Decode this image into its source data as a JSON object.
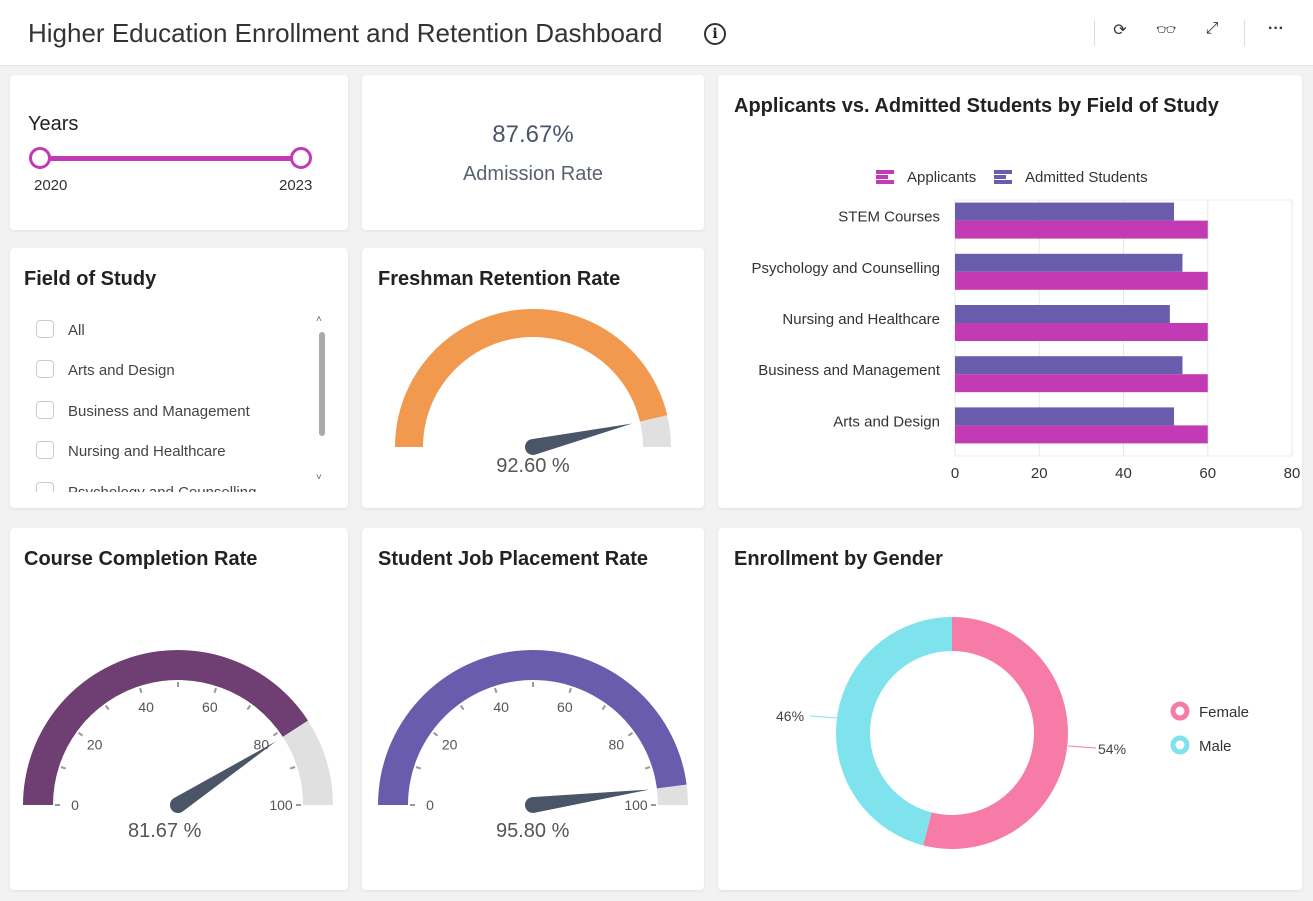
{
  "header": {
    "title": "Higher Education Enrollment and Retention Dashboard",
    "info_icon": "info-icon",
    "toolbar": [
      "refresh-icon",
      "glasses-icon",
      "expand-icon",
      "more-icon"
    ]
  },
  "years": {
    "title": "Years",
    "from": "2020",
    "to": "2023",
    "accent": "#c23bb5"
  },
  "admission": {
    "value": "87.67%",
    "label": "Admission Rate"
  },
  "field_filter": {
    "title": "Field of Study",
    "items": [
      "All",
      "Arts and Design",
      "Business and Management",
      "Nursing and Healthcare",
      "Psychology and Counselling"
    ]
  },
  "freshman": {
    "title": "Freshman Retention Rate",
    "value": 92.6,
    "display": "92.60 %",
    "color": "#f0994f"
  },
  "completion": {
    "title": "Course Completion Rate",
    "value": 81.67,
    "display": "81.67 %",
    "color": "#6f3f74",
    "ticks": [
      "0",
      "20",
      "40",
      "60",
      "80",
      "100"
    ]
  },
  "placement": {
    "title": "Student Job Placement Rate",
    "value": 95.8,
    "display": "95.80 %",
    "color": "#6a5cad",
    "ticks": [
      "0",
      "20",
      "40",
      "60",
      "80",
      "100"
    ]
  },
  "chart_data": [
    {
      "type": "bar",
      "orientation": "horizontal",
      "title": "Applicants vs. Admitted Students by Field of Study",
      "categories": [
        "STEM Courses",
        "Psychology and Counselling",
        "Nursing and Healthcare",
        "Business and Management",
        "Arts and Design"
      ],
      "series": [
        {
          "name": "Applicants",
          "color": "#c23bb5",
          "values": [
            60,
            60,
            60,
            60,
            60
          ]
        },
        {
          "name": "Admitted Students",
          "color": "#6a5cad",
          "values": [
            52,
            54,
            51,
            54,
            52
          ]
        }
      ],
      "xlim": [
        0,
        80
      ],
      "xticks": [
        "0",
        "20",
        "40",
        "60",
        "80"
      ],
      "grid": true,
      "legend": "top"
    },
    {
      "type": "pie",
      "donut": true,
      "title": "Enrollment by Gender",
      "labels": [
        "Female",
        "Male"
      ],
      "values": [
        54,
        46
      ],
      "display": [
        "54%",
        "46%"
      ],
      "colors": [
        "#f67ba6",
        "#7ee3ec"
      ],
      "legend": "right"
    }
  ]
}
